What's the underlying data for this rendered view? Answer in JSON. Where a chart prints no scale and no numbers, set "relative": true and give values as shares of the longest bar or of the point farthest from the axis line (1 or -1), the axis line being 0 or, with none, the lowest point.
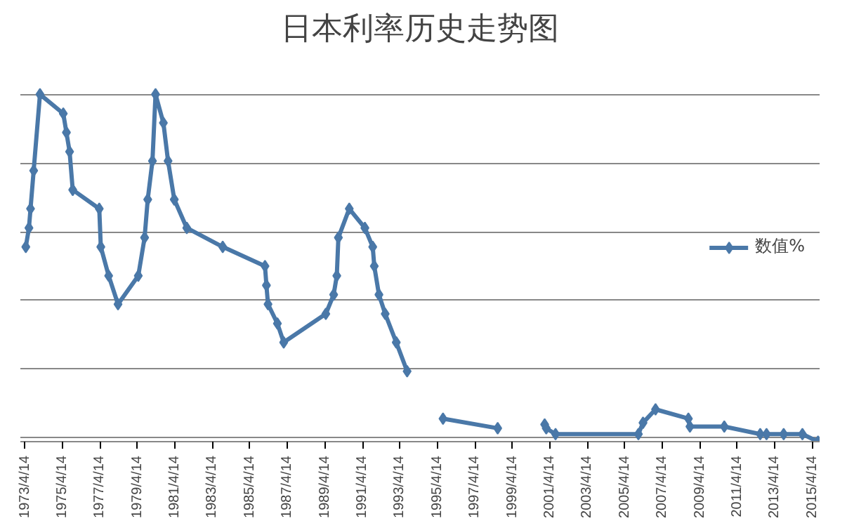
{
  "chart_data": {
    "type": "line",
    "title": "日本利率历史走势图",
    "relative": true,
    "x": [
      "1973-05",
      "1973-07",
      "1973-08",
      "1973-10",
      "1974-02",
      "1975-05",
      "1975-07",
      "1975-09",
      "1975-11",
      "1977-04",
      "1977-05",
      "1977-10",
      "1978-04",
      "1979-05",
      "1979-09",
      "1979-11",
      "1980-02",
      "1980-04",
      "1980-09",
      "1980-12",
      "1981-04",
      "1981-12",
      "1983-11",
      "1986-02",
      "1986-03",
      "1986-04",
      "1986-10",
      "1987-02",
      "1989-05",
      "1989-10",
      "1989-12",
      "1990-01",
      "1990-08",
      "1991-06",
      "1991-11",
      "1991-12",
      "1992-03",
      "1992-07",
      "1993-02",
      "1993-09",
      "1994-09",
      "1995-08",
      "1998-07",
      "1999-10",
      "2001-01",
      "2001-02",
      "2001-08",
      "2006-01",
      "2006-04",
      "2006-12",
      "2008-09",
      "2008-10",
      "2010-08",
      "2012-07",
      "2012-11",
      "2013-10",
      "2014-10",
      "2015-08"
    ],
    "series": [
      {
        "name": "数值%",
        "color": "#4a78a8",
        "values": [
          0.556,
          0.611,
          0.667,
          0.778,
          1,
          0.944,
          0.889,
          0.833,
          0.722,
          0.667,
          0.556,
          0.472,
          0.389,
          0.472,
          0.583,
          0.694,
          0.806,
          1,
          0.917,
          0.806,
          0.694,
          0.611,
          0.556,
          0.5,
          0.444,
          0.389,
          0.333,
          0.278,
          0.361,
          0.417,
          0.472,
          0.583,
          0.667,
          0.611,
          0.556,
          0.5,
          0.417,
          0.361,
          0.278,
          0.194,
          null,
          0.056,
          0.028,
          null,
          0.039,
          0.028,
          0.011,
          0.011,
          0.044,
          0.083,
          0.056,
          0.033,
          0.033,
          0.011,
          0.011,
          0.011,
          0.011,
          -0.011
        ]
      }
    ],
    "xlim": [
      "1973-01-15",
      "2015-09-01"
    ],
    "xticks": [
      {
        "value": "1973-04-14",
        "label": "1973/4/14"
      },
      {
        "value": "1975-04-14",
        "label": "1975/4/14"
      },
      {
        "value": "1977-04-14",
        "label": "1977/4/14"
      },
      {
        "value": "1979-04-14",
        "label": "1979/4/14"
      },
      {
        "value": "1981-04-14",
        "label": "1981/4/14"
      },
      {
        "value": "1983-04-14",
        "label": "1983/4/14"
      },
      {
        "value": "1985-04-14",
        "label": "1985/4/14"
      },
      {
        "value": "1987-04-14",
        "label": "1987/4/14"
      },
      {
        "value": "1989-04-14",
        "label": "1989/4/14"
      },
      {
        "value": "1991-04-14",
        "label": "1991/4/14"
      },
      {
        "value": "1993-04-14",
        "label": "1993/4/14"
      },
      {
        "value": "1995-04-14",
        "label": "1995/4/14"
      },
      {
        "value": "1997-04-14",
        "label": "1997/4/14"
      },
      {
        "value": "1999-04-14",
        "label": "1999/4/14"
      },
      {
        "value": "2001-04-14",
        "label": "2001/4/14"
      },
      {
        "value": "2003-04-14",
        "label": "2003/4/14"
      },
      {
        "value": "2005-04-14",
        "label": "2005/4/14"
      },
      {
        "value": "2007-04-14",
        "label": "2007/4/14"
      },
      {
        "value": "2009-04-14",
        "label": "2009/4/14"
      },
      {
        "value": "2011-04-14",
        "label": "2011/4/14"
      },
      {
        "value": "2013-04-14",
        "label": "2013/4/14"
      },
      {
        "value": "2015-04-14",
        "label": "2015/4/14"
      }
    ],
    "grid": "y",
    "legend": "right",
    "marker": "diamond",
    "line_style": "solid"
  }
}
